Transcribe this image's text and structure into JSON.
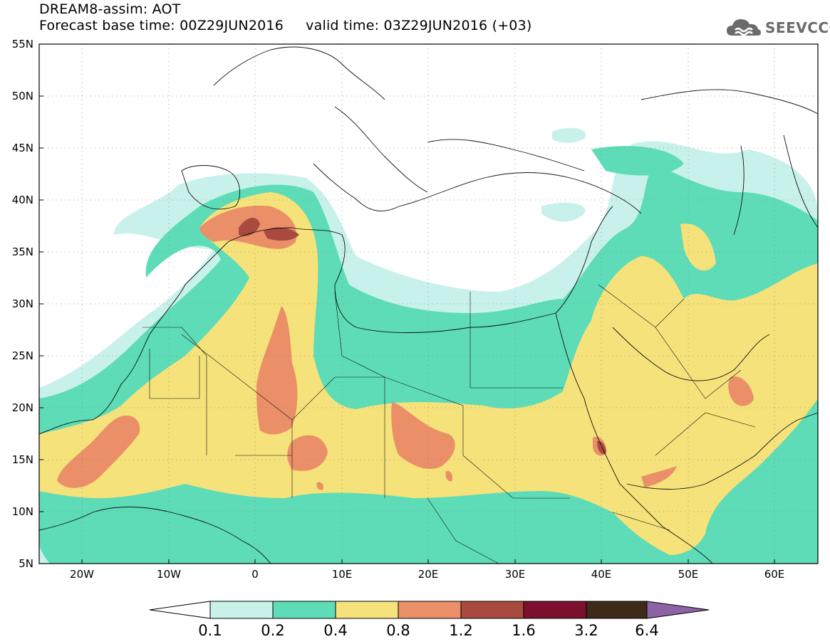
{
  "title": {
    "line1": "DREAM8-assim: AOT",
    "line2": "Forecast base time: 00Z29JUN2016     valid time: 03Z29JUN2016 (+03)"
  },
  "logo": {
    "text": "SEEVCCC",
    "icon": "cloud-icon"
  },
  "map": {
    "lon_ticks": [
      "20W",
      "10W",
      "0",
      "10E",
      "20E",
      "30E",
      "40E",
      "50E",
      "60E"
    ],
    "lat_ticks": [
      "55N",
      "50N",
      "45N",
      "40N",
      "35N",
      "30N",
      "25N",
      "20N",
      "15N",
      "10N",
      "5N"
    ]
  },
  "colorbar": {
    "labels": [
      "0.1",
      "0.2",
      "0.4",
      "0.8",
      "1.2",
      "1.6",
      "3.2",
      "6.4"
    ],
    "colors": [
      "#c9f1eb",
      "#5ddcb7",
      "#f6e27a",
      "#ea8f67",
      "#a84a3e",
      "#7c0f2d",
      "#3e2a17"
    ],
    "under_color": "#ffffff",
    "over_color": "#8d63a6"
  }
}
